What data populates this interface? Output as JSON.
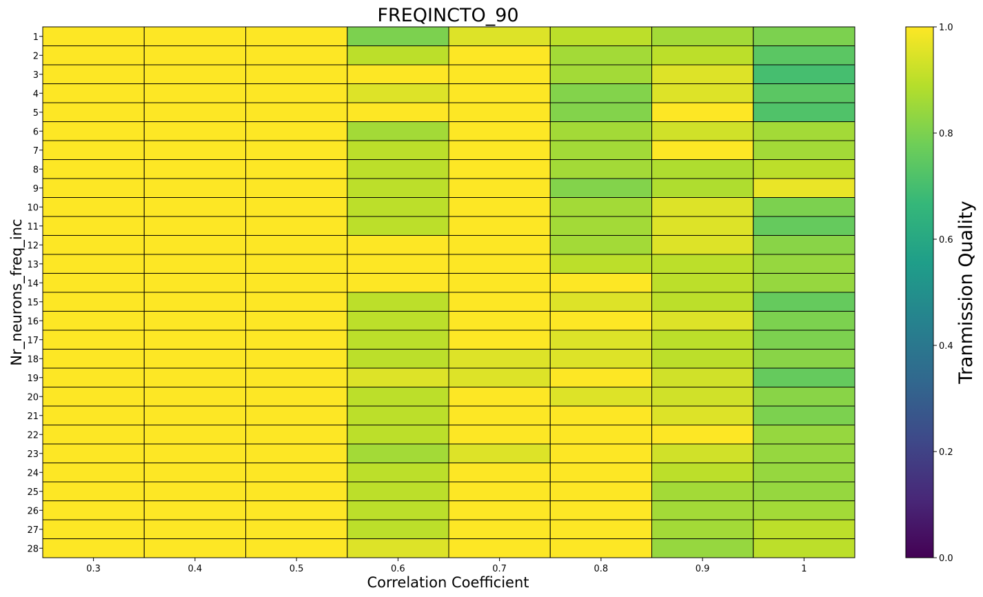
{
  "chart_data": {
    "type": "heatmap",
    "title": "FREQINCTO_90",
    "xlabel": "Correlation Coefficient",
    "ylabel": "Nr_neurons_freq_inc",
    "x_categories": [
      "0.3",
      "0.4",
      "0.5",
      "0.6",
      "0.7",
      "0.8",
      "0.9",
      "1"
    ],
    "y_categories": [
      "1",
      "2",
      "3",
      "4",
      "5",
      "6",
      "7",
      "8",
      "9",
      "10",
      "11",
      "12",
      "13",
      "14",
      "15",
      "16",
      "17",
      "18",
      "19",
      "20",
      "21",
      "22",
      "23",
      "24",
      "25",
      "26",
      "27",
      "28"
    ],
    "values": [
      [
        1.0,
        1.0,
        1.0,
        0.8,
        0.95,
        0.9,
        0.86,
        0.8
      ],
      [
        1.0,
        1.0,
        1.0,
        0.9,
        1.0,
        0.86,
        0.9,
        0.74
      ],
      [
        1.0,
        1.0,
        1.0,
        1.0,
        1.0,
        0.86,
        0.95,
        0.7
      ],
      [
        1.0,
        1.0,
        1.0,
        0.95,
        1.0,
        0.81,
        0.95,
        0.74
      ],
      [
        1.0,
        1.0,
        1.0,
        1.0,
        1.0,
        0.81,
        1.0,
        0.72
      ],
      [
        1.0,
        1.0,
        1.0,
        0.86,
        1.0,
        0.86,
        0.93,
        0.86
      ],
      [
        1.0,
        1.0,
        1.0,
        0.9,
        1.0,
        0.86,
        1.0,
        0.86
      ],
      [
        1.0,
        1.0,
        1.0,
        0.9,
        1.0,
        0.86,
        0.88,
        0.9
      ],
      [
        1.0,
        1.0,
        1.0,
        0.9,
        1.0,
        0.81,
        0.88,
        0.97
      ],
      [
        1.0,
        1.0,
        1.0,
        0.9,
        1.0,
        0.86,
        0.95,
        0.8
      ],
      [
        1.0,
        1.0,
        1.0,
        0.9,
        1.0,
        0.86,
        0.95,
        0.76
      ],
      [
        1.0,
        1.0,
        1.0,
        1.0,
        1.0,
        0.86,
        0.95,
        0.82
      ],
      [
        1.0,
        1.0,
        1.0,
        1.0,
        1.0,
        0.9,
        0.9,
        0.84
      ],
      [
        1.0,
        1.0,
        1.0,
        1.0,
        1.0,
        1.0,
        0.9,
        0.84
      ],
      [
        1.0,
        1.0,
        1.0,
        0.9,
        1.0,
        0.95,
        0.9,
        0.76
      ],
      [
        1.0,
        1.0,
        1.0,
        0.9,
        1.0,
        1.0,
        0.95,
        0.8
      ],
      [
        1.0,
        1.0,
        1.0,
        0.9,
        1.0,
        0.95,
        0.9,
        0.8
      ],
      [
        1.0,
        1.0,
        1.0,
        0.9,
        0.95,
        0.95,
        0.9,
        0.82
      ],
      [
        1.0,
        1.0,
        1.0,
        0.95,
        0.95,
        1.0,
        0.93,
        0.76
      ],
      [
        1.0,
        1.0,
        1.0,
        0.9,
        1.0,
        0.95,
        0.93,
        0.82
      ],
      [
        1.0,
        1.0,
        1.0,
        0.9,
        1.0,
        1.0,
        0.95,
        0.8
      ],
      [
        1.0,
        1.0,
        1.0,
        0.9,
        1.0,
        1.0,
        1.0,
        0.84
      ],
      [
        1.0,
        1.0,
        1.0,
        0.86,
        0.95,
        1.0,
        0.93,
        0.84
      ],
      [
        1.0,
        1.0,
        1.0,
        0.9,
        1.0,
        1.0,
        0.9,
        0.84
      ],
      [
        1.0,
        1.0,
        1.0,
        0.9,
        1.0,
        1.0,
        0.86,
        0.84
      ],
      [
        1.0,
        1.0,
        1.0,
        0.9,
        1.0,
        1.0,
        0.86,
        0.86
      ],
      [
        1.0,
        1.0,
        1.0,
        0.9,
        1.0,
        1.0,
        0.86,
        0.9
      ],
      [
        1.0,
        1.0,
        1.0,
        0.95,
        1.0,
        1.0,
        0.84,
        0.9
      ]
    ],
    "colorbar": {
      "label": "Tranmission Quality",
      "range": [
        0.0,
        1.0
      ],
      "ticks": [
        "0.0",
        "0.2",
        "0.4",
        "0.6",
        "0.8",
        "1.0"
      ],
      "colormap": "viridis"
    },
    "grid": false
  },
  "colors": {
    "cell_edge": "#000000",
    "viridis_stops": [
      "#440154",
      "#482878",
      "#3e4989",
      "#31688e",
      "#26828e",
      "#1f9e89",
      "#35b779",
      "#6ece58",
      "#b5de2b",
      "#fde725"
    ]
  }
}
